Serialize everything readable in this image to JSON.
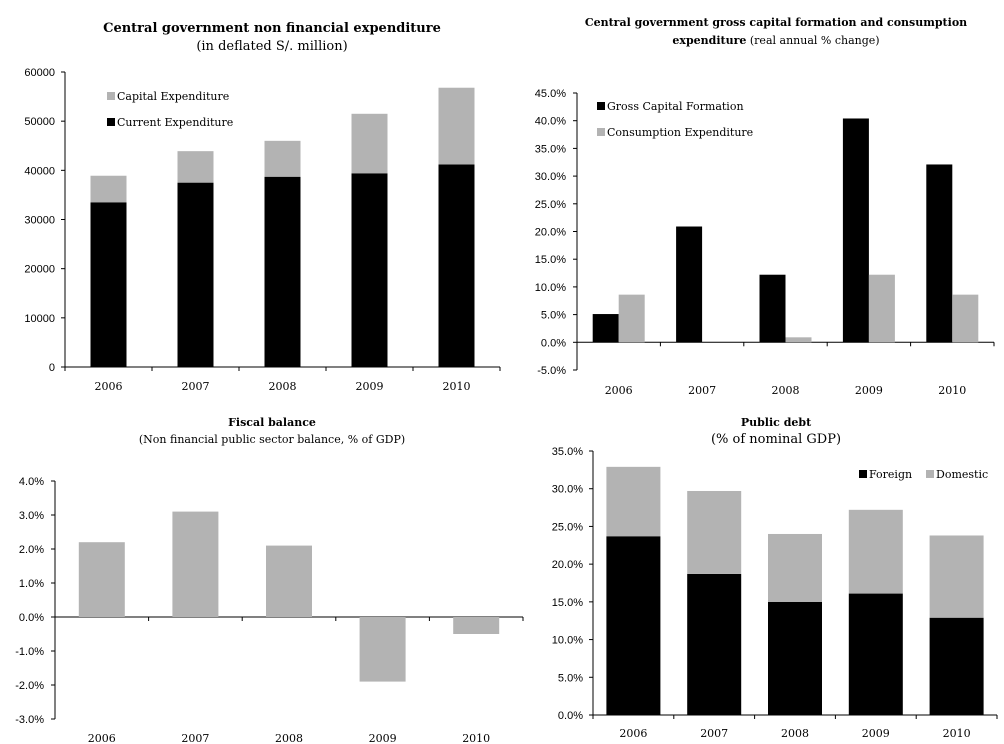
{
  "colors": {
    "black": "#000000",
    "grey": "#b3b3b3"
  },
  "chart_data": [
    {
      "type": "bar",
      "stacked": true,
      "title": "Central government non financial expenditure",
      "subtitle": "(in deflated S/. million)",
      "categories": [
        "2006",
        "2007",
        "2008",
        "2009",
        "2010"
      ],
      "series": [
        {
          "name": "Current Expenditure",
          "color": "#000000",
          "values": [
            33500,
            37500,
            38700,
            39400,
            41200
          ]
        },
        {
          "name": "Capital Expenditure",
          "color": "#b3b3b3",
          "values": [
            5400,
            6400,
            7300,
            12100,
            15600
          ]
        }
      ],
      "ylim": [
        0,
        60000
      ],
      "yticks": [
        0,
        10000,
        20000,
        30000,
        40000,
        50000,
        60000
      ],
      "ytick_labels": [
        "0",
        "10000",
        "20000",
        "30000",
        "40000",
        "50000",
        "60000"
      ],
      "legend_placement": "top-left",
      "grid": false
    },
    {
      "type": "bar",
      "grouped": true,
      "title": "Central government gross capital formation  and consumption",
      "subtitle_bold": "expenditure",
      "subtitle": " (real annual % change)",
      "categories": [
        "2006",
        "2007",
        "2008",
        "2009",
        "2010"
      ],
      "series": [
        {
          "name": "Gross Capital Formation",
          "color": "#000000",
          "values": [
            5.1,
            20.9,
            12.2,
            40.4,
            32.1
          ]
        },
        {
          "name": "Consumption Expenditure",
          "color": "#b3b3b3",
          "values": [
            8.6,
            0,
            0.9,
            12.2,
            8.6
          ]
        }
      ],
      "ylim": [
        -5,
        45
      ],
      "yticks": [
        -5,
        0,
        5,
        10,
        15,
        20,
        25,
        30,
        35,
        40,
        45
      ],
      "ytick_labels": [
        "-5.0%",
        "0.0%",
        "5.0%",
        "10.0%",
        "15.0%",
        "20.0%",
        "25.0%",
        "30.0%",
        "35.0%",
        "40.0%",
        "45.0%"
      ],
      "legend_placement": "top-left",
      "grid": false
    },
    {
      "type": "bar",
      "title": "Fiscal balance",
      "subtitle": "(Non financial public sector balance, % of GDP)",
      "categories": [
        "2006",
        "2007",
        "2008",
        "2009",
        "2010"
      ],
      "series": [
        {
          "color": "#b3b3b3",
          "values": [
            2.2,
            3.1,
            2.1,
            -1.9,
            -0.5
          ]
        }
      ],
      "ylim": [
        -3,
        4
      ],
      "yticks": [
        -3,
        -2,
        -1,
        0,
        1,
        2,
        3,
        4
      ],
      "ytick_labels": [
        "-3.0%",
        "-2.0%",
        "-1.0%",
        "0.0%",
        "1.0%",
        "2.0%",
        "3.0%",
        "4.0%"
      ],
      "grid": false
    },
    {
      "type": "bar",
      "stacked": true,
      "title": "Public debt",
      "subtitle": "(% of nominal GDP)",
      "categories": [
        "2006",
        "2007",
        "2008",
        "2009",
        "2010"
      ],
      "series": [
        {
          "name": "Foreign",
          "color": "#000000",
          "values": [
            23.7,
            18.7,
            15.0,
            16.1,
            12.9
          ]
        },
        {
          "name": "Domestic",
          "color": "#b3b3b3",
          "values": [
            9.2,
            11.0,
            9.0,
            11.1,
            10.9
          ]
        }
      ],
      "ylim": [
        0,
        35
      ],
      "yticks": [
        0,
        5,
        10,
        15,
        20,
        25,
        30,
        35
      ],
      "ytick_labels": [
        "0.0%",
        "5.0%",
        "10.0%",
        "15.0%",
        "20.0%",
        "25.0%",
        "30.0%",
        "35.0%"
      ],
      "legend_placement": "top-right",
      "grid": false
    }
  ]
}
